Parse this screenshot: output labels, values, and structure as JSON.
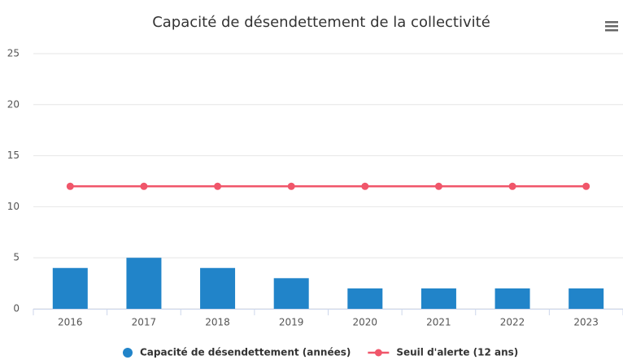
{
  "chart_data": {
    "type": "bar",
    "title": "Capacité de désendettement de la collectivité",
    "categories": [
      "2016",
      "2017",
      "2018",
      "2019",
      "2020",
      "2021",
      "2022",
      "2023"
    ],
    "series": [
      {
        "name": "Capacité de désendettement (années)",
        "type": "bar",
        "color": "#2184c9",
        "values": [
          4,
          5,
          4,
          3,
          2,
          2,
          2,
          2
        ]
      },
      {
        "name": "Seuil d'alerte (12 ans)",
        "type": "line",
        "color": "#f0566a",
        "values": [
          12,
          12,
          12,
          12,
          12,
          12,
          12,
          12
        ]
      }
    ],
    "ylim": [
      0,
      25
    ],
    "yticks": [
      0,
      5,
      10,
      15,
      20,
      25
    ],
    "grid": true,
    "legend": "bottom"
  }
}
